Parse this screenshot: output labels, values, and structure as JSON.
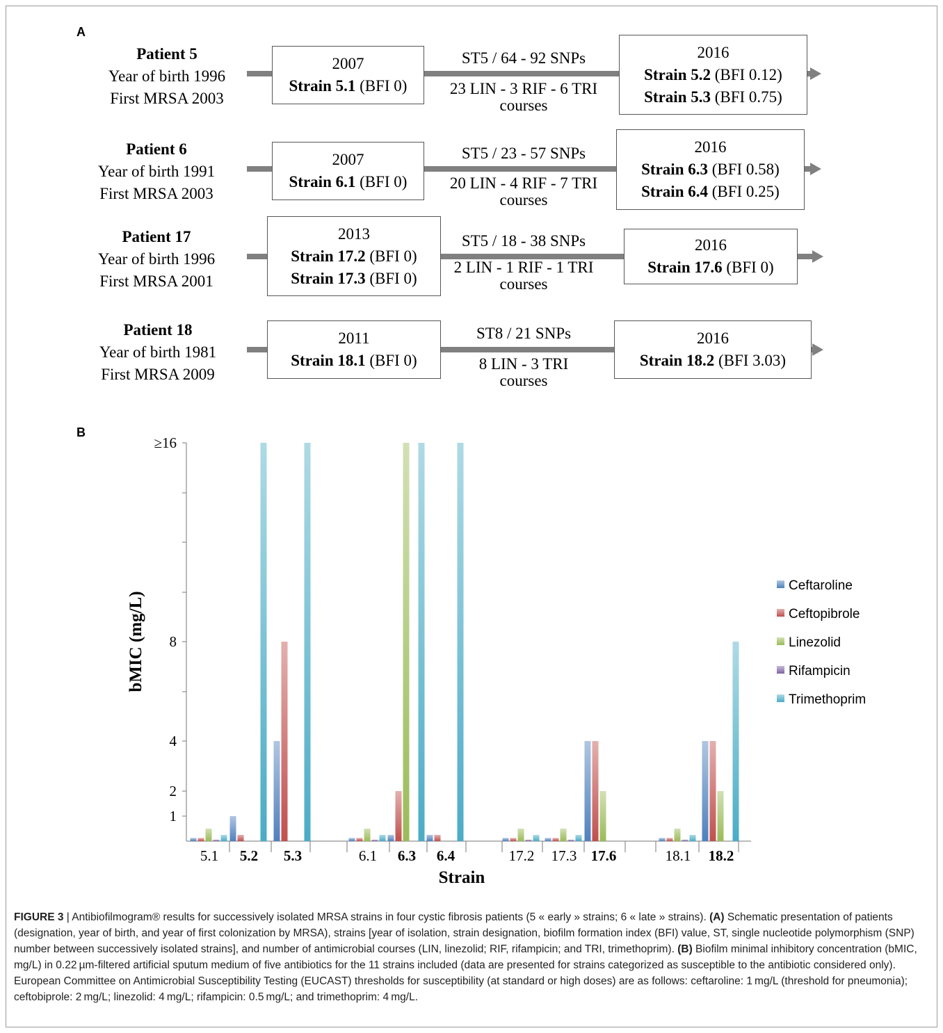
{
  "panel_a": {
    "letter": "A",
    "patients": [
      {
        "name": "Patient 5",
        "birth": "Year of birth 1996",
        "first": "First MRSA 2003",
        "left_year": "2007",
        "left_strains": [
          {
            "strain": "Strain 5.1",
            "bfi": "(BFI 0)"
          }
        ],
        "top_label": "ST5 / 64 - 92 SNPs",
        "bottom_label": "23 LIN - 3 RIF - 6 TRI",
        "courses": "courses",
        "right_year": "2016",
        "right_strains": [
          {
            "strain": "Strain 5.2",
            "bfi": "(BFI 0.12)"
          },
          {
            "strain": "Strain 5.3",
            "bfi": "(BFI 0.75)"
          }
        ]
      },
      {
        "name": "Patient 6",
        "birth": "Year of birth 1991",
        "first": "First MRSA 2003",
        "left_year": "2007",
        "left_strains": [
          {
            "strain": "Strain 6.1",
            "bfi": "(BFI 0)"
          }
        ],
        "top_label": "ST5 / 23 - 57 SNPs",
        "bottom_label": "20 LIN - 4 RIF - 7 TRI",
        "courses": "courses",
        "right_year": "2016",
        "right_strains": [
          {
            "strain": "Strain 6.3",
            "bfi": "(BFI 0.58)"
          },
          {
            "strain": "Strain 6.4",
            "bfi": "(BFI 0.25)"
          }
        ]
      },
      {
        "name": "Patient 17",
        "birth": "Year of birth 1996",
        "first": "First MRSA 2001",
        "left_year": "2013",
        "left_strains": [
          {
            "strain": "Strain 17.2",
            "bfi": "(BFI 0)"
          },
          {
            "strain": "Strain 17.3",
            "bfi": "(BFI 0)"
          }
        ],
        "top_label": "ST5 / 18 - 38 SNPs",
        "bottom_label": "2 LIN - 1 RIF - 1 TRI",
        "courses": "courses",
        "right_year": "2016",
        "right_strains": [
          {
            "strain": "Strain 17.6",
            "bfi": "(BFI 0)"
          }
        ]
      },
      {
        "name": "Patient 18",
        "birth": "Year of birth 1981",
        "first": "First MRSA 2009",
        "left_year": "2011",
        "left_strains": [
          {
            "strain": "Strain 18.1",
            "bfi": "(BFI 0)"
          }
        ],
        "top_label": "ST8 / 21 SNPs",
        "bottom_label": "8 LIN - 3 TRI",
        "courses": "courses",
        "right_year": "2016",
        "right_strains": [
          {
            "strain": "Strain 18.2",
            "bfi": "(BFI 3.03)"
          }
        ]
      }
    ]
  },
  "panel_b": {
    "letter": "B"
  },
  "chart_data": {
    "type": "bar",
    "ylabel": "bMIC (mg/L)",
    "xlabel": "Strain",
    "ylim": [
      0,
      16
    ],
    "yticks": [
      {
        "label": "1",
        "value": 1
      },
      {
        "label": "2",
        "value": 2
      },
      {
        "label": "4",
        "value": 4
      },
      {
        "label": "8",
        "value": 8
      },
      {
        "label": "≥16",
        "value": 16
      }
    ],
    "groups": [
      {
        "categories": [
          "5.1",
          "5.2",
          "5.3"
        ],
        "bold": [
          false,
          true,
          true
        ]
      },
      {
        "categories": [
          "6.1",
          "6.3",
          "6.4"
        ],
        "bold": [
          false,
          true,
          true
        ]
      },
      {
        "categories": [
          "17.2",
          "17.3",
          "17.6"
        ],
        "bold": [
          false,
          false,
          true
        ]
      },
      {
        "categories": [
          "18.1",
          "18.2"
        ],
        "bold": [
          false,
          true
        ]
      }
    ],
    "categories": [
      "5.1",
      "5.2",
      "5.3",
      "6.1",
      "6.3",
      "6.4",
      "17.2",
      "17.3",
      "17.6",
      "18.1",
      "18.2"
    ],
    "series": [
      {
        "name": "Ceftaroline",
        "color": "#4f81bd",
        "values": [
          0.125,
          1,
          4,
          0.125,
          0.25,
          0.25,
          0.125,
          0.125,
          4,
          0.125,
          4
        ]
      },
      {
        "name": "Ceftopibrole",
        "color": "#c0504d",
        "values": [
          0.125,
          0.25,
          8,
          0.125,
          2,
          0.25,
          0.125,
          0.125,
          4,
          0.125,
          4
        ]
      },
      {
        "name": "Linezolid",
        "color": "#9bbb59",
        "values": [
          0.5,
          null,
          null,
          0.5,
          16,
          null,
          0.5,
          0.5,
          2,
          0.5,
          2
        ]
      },
      {
        "name": "Rifampicin",
        "color": "#8064a2",
        "values": [
          0.06,
          null,
          null,
          0.06,
          null,
          null,
          0.06,
          0.06,
          null,
          0.06,
          null
        ]
      },
      {
        "name": "Trimethoprim",
        "color": "#4bacc6",
        "values": [
          0.25,
          16,
          16,
          0.25,
          16,
          16,
          0.25,
          0.25,
          null,
          0.25,
          8
        ]
      }
    ],
    "legend": "right"
  },
  "caption": {
    "fig_label": "FIGURE 3",
    "sep": " | ",
    "intro": "Antibiofilmogram® results for successively isolated MRSA strains in four cystic fibrosis patients (5 « early » strains; 6 « late » strains). ",
    "a_label": "(A)",
    "a_text": " Schematic presentation of patients (designation, year of birth, and year of first colonization by MRSA), strains [year of isolation, strain designation, biofilm formation index (BFI) value, ST, single nucleotide polymorphism (SNP) number between successively isolated strains], and number of antimicrobial courses (LIN, linezolid; RIF, rifampicin; and TRI, trimethoprim). ",
    "b_label": "(B)",
    "b_text": " Biofilm minimal inhibitory concentration (bMIC, mg/L) in 0.22 µm-filtered artificial sputum medium of five antibiotics for the 11 strains included (data are presented for strains categorized as susceptible to the antibiotic considered only). European Committee on Antimicrobial Susceptibility Testing (EUCAST) thresholds for susceptibility (at standard or high doses) are as follows: ceftaroline: 1 mg/L (threshold for pneumonia); ceftobiprole: 2 mg/L; linezolid: 4 mg/L; rifampicin: 0.5 mg/L; and trimethoprim: 4 mg/L."
  }
}
